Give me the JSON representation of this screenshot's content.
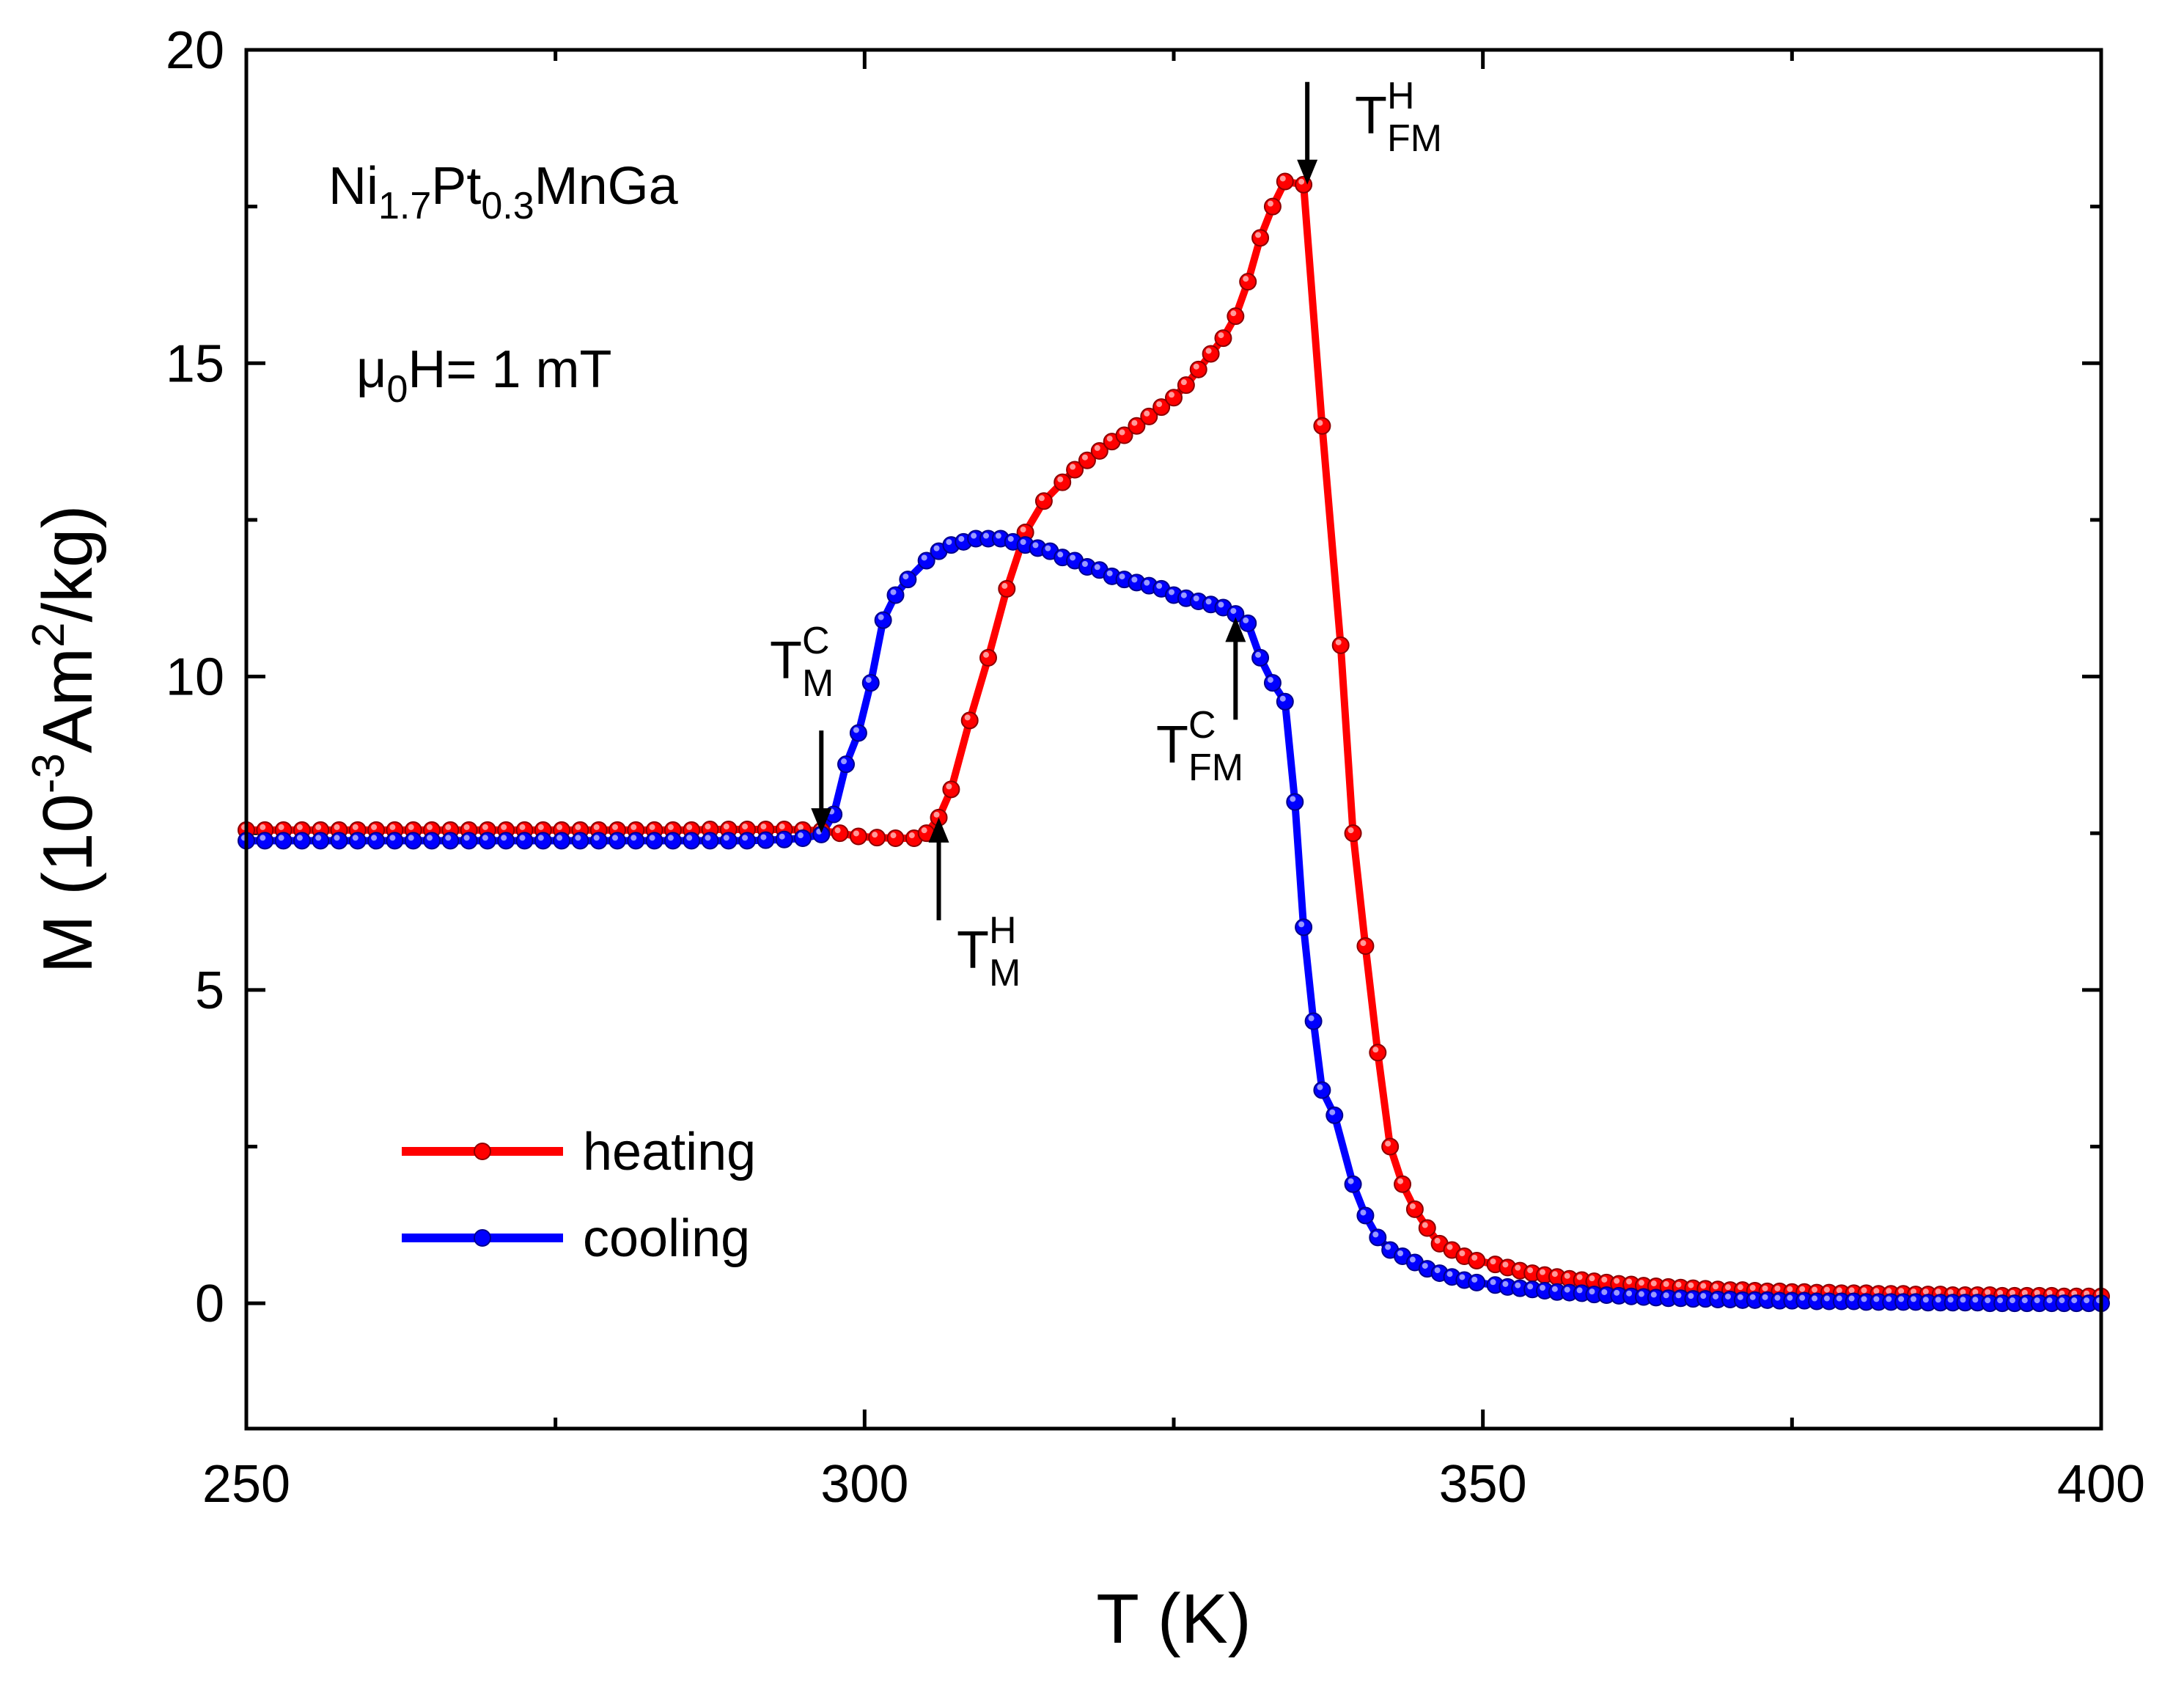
{
  "chart_data": {
    "type": "line",
    "xlabel": "T (K)",
    "ylabel": "M (10⁻³Am²/kg)",
    "ylabel_parts": {
      "before": "M (10",
      "exp1": "-3",
      "mid": "Am",
      "exp2": "2",
      "after": "/kg)"
    },
    "xlim": [
      250,
      400
    ],
    "ylim": [
      -2,
      20
    ],
    "xticks": [
      250,
      300,
      350,
      400
    ],
    "yticks": [
      0,
      5,
      10,
      15,
      20
    ],
    "x_minor_step": 25,
    "y_minor_step": 2.5,
    "grid": false,
    "legend_position": "bottom-left",
    "series": [
      {
        "name": "heating",
        "color": "#ff0000",
        "points": [
          [
            250,
            7.55
          ],
          [
            251.5,
            7.55
          ],
          [
            253,
            7.55
          ],
          [
            254.5,
            7.55
          ],
          [
            256,
            7.55
          ],
          [
            257.5,
            7.55
          ],
          [
            259,
            7.55
          ],
          [
            260.5,
            7.55
          ],
          [
            262,
            7.55
          ],
          [
            263.5,
            7.55
          ],
          [
            265,
            7.55
          ],
          [
            266.5,
            7.55
          ],
          [
            268,
            7.55
          ],
          [
            269.5,
            7.55
          ],
          [
            271,
            7.55
          ],
          [
            272.5,
            7.55
          ],
          [
            274,
            7.55
          ],
          [
            275.5,
            7.55
          ],
          [
            277,
            7.55
          ],
          [
            278.5,
            7.55
          ],
          [
            280,
            7.55
          ],
          [
            281.5,
            7.55
          ],
          [
            283,
            7.55
          ],
          [
            284.5,
            7.55
          ],
          [
            286,
            7.55
          ],
          [
            287.5,
            7.56
          ],
          [
            289,
            7.56
          ],
          [
            290.5,
            7.56
          ],
          [
            292,
            7.56
          ],
          [
            293.5,
            7.56
          ],
          [
            295,
            7.55
          ],
          [
            296.5,
            7.54
          ],
          [
            298,
            7.5
          ],
          [
            299.5,
            7.45
          ],
          [
            301,
            7.43
          ],
          [
            302.5,
            7.42
          ],
          [
            304,
            7.42
          ],
          [
            305,
            7.5
          ],
          [
            306,
            7.75
          ],
          [
            307,
            8.2
          ],
          [
            308.5,
            9.3
          ],
          [
            310,
            10.3
          ],
          [
            311.5,
            11.4
          ],
          [
            313,
            12.3
          ],
          [
            314.5,
            12.8
          ],
          [
            316,
            13.1
          ],
          [
            317,
            13.3
          ],
          [
            318,
            13.45
          ],
          [
            319,
            13.6
          ],
          [
            320,
            13.75
          ],
          [
            321,
            13.85
          ],
          [
            322,
            14.0
          ],
          [
            323,
            14.15
          ],
          [
            324,
            14.3
          ],
          [
            325,
            14.45
          ],
          [
            326,
            14.65
          ],
          [
            327,
            14.9
          ],
          [
            328,
            15.15
          ],
          [
            329,
            15.4
          ],
          [
            330,
            15.75
          ],
          [
            331,
            16.3
          ],
          [
            332,
            17.0
          ],
          [
            333,
            17.5
          ],
          [
            334,
            17.9
          ],
          [
            335.5,
            17.85
          ],
          [
            337,
            14.0
          ],
          [
            338.5,
            10.5
          ],
          [
            339.5,
            7.5
          ],
          [
            340.5,
            5.7
          ],
          [
            341.5,
            4.0
          ],
          [
            342.5,
            2.5
          ],
          [
            343.5,
            1.9
          ],
          [
            344.5,
            1.5
          ],
          [
            345.5,
            1.2
          ],
          [
            346.5,
            0.95
          ],
          [
            347.5,
            0.85
          ],
          [
            348.5,
            0.75
          ],
          [
            349.5,
            0.68
          ],
          [
            351,
            0.62
          ],
          [
            352,
            0.57
          ],
          [
            353,
            0.52
          ],
          [
            354,
            0.48
          ],
          [
            355,
            0.45
          ],
          [
            356,
            0.42
          ],
          [
            357,
            0.39
          ],
          [
            358,
            0.37
          ],
          [
            359,
            0.35
          ],
          [
            360,
            0.33
          ],
          [
            361,
            0.31
          ],
          [
            362,
            0.3
          ],
          [
            363,
            0.28
          ],
          [
            364,
            0.27
          ],
          [
            365,
            0.26
          ],
          [
            366,
            0.25
          ],
          [
            367,
            0.24
          ],
          [
            368,
            0.23
          ],
          [
            369,
            0.22
          ],
          [
            370,
            0.21
          ],
          [
            371,
            0.21
          ],
          [
            372,
            0.2
          ],
          [
            373,
            0.19
          ],
          [
            374,
            0.19
          ],
          [
            375,
            0.18
          ],
          [
            376,
            0.18
          ],
          [
            377,
            0.17
          ],
          [
            378,
            0.17
          ],
          [
            379,
            0.16
          ],
          [
            380,
            0.16
          ],
          [
            381,
            0.16
          ],
          [
            382,
            0.15
          ],
          [
            383,
            0.15
          ],
          [
            384,
            0.15
          ],
          [
            385,
            0.14
          ],
          [
            386,
            0.14
          ],
          [
            387,
            0.14
          ],
          [
            388,
            0.13
          ],
          [
            389,
            0.13
          ],
          [
            390,
            0.13
          ],
          [
            391,
            0.13
          ],
          [
            392,
            0.12
          ],
          [
            393,
            0.12
          ],
          [
            394,
            0.12
          ],
          [
            395,
            0.12
          ],
          [
            396,
            0.12
          ],
          [
            397,
            0.11
          ],
          [
            398,
            0.11
          ],
          [
            399,
            0.11
          ],
          [
            400,
            0.11
          ]
        ]
      },
      {
        "name": "cooling",
        "color": "#0000ff",
        "points": [
          [
            250,
            7.38
          ],
          [
            251.5,
            7.38
          ],
          [
            253,
            7.38
          ],
          [
            254.5,
            7.38
          ],
          [
            256,
            7.38
          ],
          [
            257.5,
            7.38
          ],
          [
            259,
            7.38
          ],
          [
            260.5,
            7.38
          ],
          [
            262,
            7.38
          ],
          [
            263.5,
            7.38
          ],
          [
            265,
            7.38
          ],
          [
            266.5,
            7.38
          ],
          [
            268,
            7.38
          ],
          [
            269.5,
            7.38
          ],
          [
            271,
            7.38
          ],
          [
            272.5,
            7.38
          ],
          [
            274,
            7.38
          ],
          [
            275.5,
            7.38
          ],
          [
            277,
            7.38
          ],
          [
            278.5,
            7.38
          ],
          [
            280,
            7.38
          ],
          [
            281.5,
            7.38
          ],
          [
            283,
            7.38
          ],
          [
            284.5,
            7.38
          ],
          [
            286,
            7.38
          ],
          [
            287.5,
            7.38
          ],
          [
            289,
            7.38
          ],
          [
            290.5,
            7.38
          ],
          [
            292,
            7.39
          ],
          [
            293.5,
            7.4
          ],
          [
            295,
            7.42
          ],
          [
            296.5,
            7.48
          ],
          [
            297.5,
            7.8
          ],
          [
            298.5,
            8.6
          ],
          [
            299.5,
            9.1
          ],
          [
            300.5,
            9.9
          ],
          [
            301.5,
            10.9
          ],
          [
            302.5,
            11.3
          ],
          [
            303.5,
            11.55
          ],
          [
            305,
            11.85
          ],
          [
            306,
            12.0
          ],
          [
            307,
            12.1
          ],
          [
            308,
            12.15
          ],
          [
            309,
            12.2
          ],
          [
            310,
            12.2
          ],
          [
            311,
            12.2
          ],
          [
            312,
            12.15
          ],
          [
            313,
            12.1
          ],
          [
            314,
            12.05
          ],
          [
            315,
            12.0
          ],
          [
            316,
            11.9
          ],
          [
            317,
            11.85
          ],
          [
            318,
            11.75
          ],
          [
            319,
            11.7
          ],
          [
            320,
            11.6
          ],
          [
            321,
            11.55
          ],
          [
            322,
            11.5
          ],
          [
            323,
            11.45
          ],
          [
            324,
            11.4
          ],
          [
            325,
            11.3
          ],
          [
            326,
            11.25
          ],
          [
            327,
            11.2
          ],
          [
            328,
            11.15
          ],
          [
            329,
            11.1
          ],
          [
            330,
            11.0
          ],
          [
            331,
            10.85
          ],
          [
            332,
            10.3
          ],
          [
            333,
            9.9
          ],
          [
            334,
            9.6
          ],
          [
            334.8,
            8.0
          ],
          [
            335.5,
            6.0
          ],
          [
            336.3,
            4.5
          ],
          [
            337,
            3.4
          ],
          [
            338,
            3.0
          ],
          [
            339.5,
            1.9
          ],
          [
            340.5,
            1.4
          ],
          [
            341.5,
            1.05
          ],
          [
            342.5,
            0.85
          ],
          [
            343.5,
            0.75
          ],
          [
            344.5,
            0.65
          ],
          [
            345.5,
            0.55
          ],
          [
            346.5,
            0.48
          ],
          [
            347.5,
            0.42
          ],
          [
            348.5,
            0.37
          ],
          [
            349.5,
            0.33
          ],
          [
            351,
            0.29
          ],
          [
            352,
            0.26
          ],
          [
            353,
            0.24
          ],
          [
            354,
            0.22
          ],
          [
            355,
            0.2
          ],
          [
            356,
            0.18
          ],
          [
            357,
            0.17
          ],
          [
            358,
            0.16
          ],
          [
            359,
            0.14
          ],
          [
            360,
            0.13
          ],
          [
            361,
            0.12
          ],
          [
            362,
            0.11
          ],
          [
            363,
            0.1
          ],
          [
            364,
            0.09
          ],
          [
            365,
            0.08
          ],
          [
            366,
            0.08
          ],
          [
            367,
            0.07
          ],
          [
            368,
            0.07
          ],
          [
            369,
            0.06
          ],
          [
            370,
            0.06
          ],
          [
            371,
            0.05
          ],
          [
            372,
            0.05
          ],
          [
            373,
            0.05
          ],
          [
            374,
            0.04
          ],
          [
            375,
            0.04
          ],
          [
            376,
            0.04
          ],
          [
            377,
            0.03
          ],
          [
            378,
            0.03
          ],
          [
            379,
            0.03
          ],
          [
            380,
            0.03
          ],
          [
            381,
            0.02
          ],
          [
            382,
            0.02
          ],
          [
            383,
            0.02
          ],
          [
            384,
            0.02
          ],
          [
            385,
            0.02
          ],
          [
            386,
            0.01
          ],
          [
            387,
            0.01
          ],
          [
            388,
            0.01
          ],
          [
            389,
            0.01
          ],
          [
            390,
            0.01
          ],
          [
            391,
            0.0
          ],
          [
            392,
            0.0
          ],
          [
            393,
            0.0
          ],
          [
            394,
            0.0
          ],
          [
            395,
            0.0
          ],
          [
            396,
            0.0
          ],
          [
            397,
            0.0
          ],
          [
            398,
            0.0
          ],
          [
            399,
            0.0
          ],
          [
            400,
            0.0
          ]
        ]
      }
    ],
    "annotations": {
      "compound": {
        "p1": "Ni",
        "s1": "1.7",
        "p2": "Pt",
        "s2": "0.3",
        "p3": "MnGa"
      },
      "field": {
        "mu": "μ",
        "sub": "0",
        "rest": "H= 1 mT"
      },
      "markers": [
        {
          "id": "T_M_C",
          "base": "T",
          "sup": "C",
          "sub": "M",
          "arrow": "down",
          "x": 296.5,
          "y": 7.5
        },
        {
          "id": "T_M_H",
          "base": "T",
          "sup": "H",
          "sub": "M",
          "arrow": "up",
          "x": 306,
          "y": 7.75
        },
        {
          "id": "T_FM_C",
          "base": "T",
          "sup": "C",
          "sub": "FM",
          "arrow": "up",
          "x": 330,
          "y": 10.95
        },
        {
          "id": "T_FM_H",
          "base": "T",
          "sup": "H",
          "sub": "FM",
          "arrow": "down",
          "x": 335.8,
          "y": 17.85
        }
      ]
    }
  }
}
